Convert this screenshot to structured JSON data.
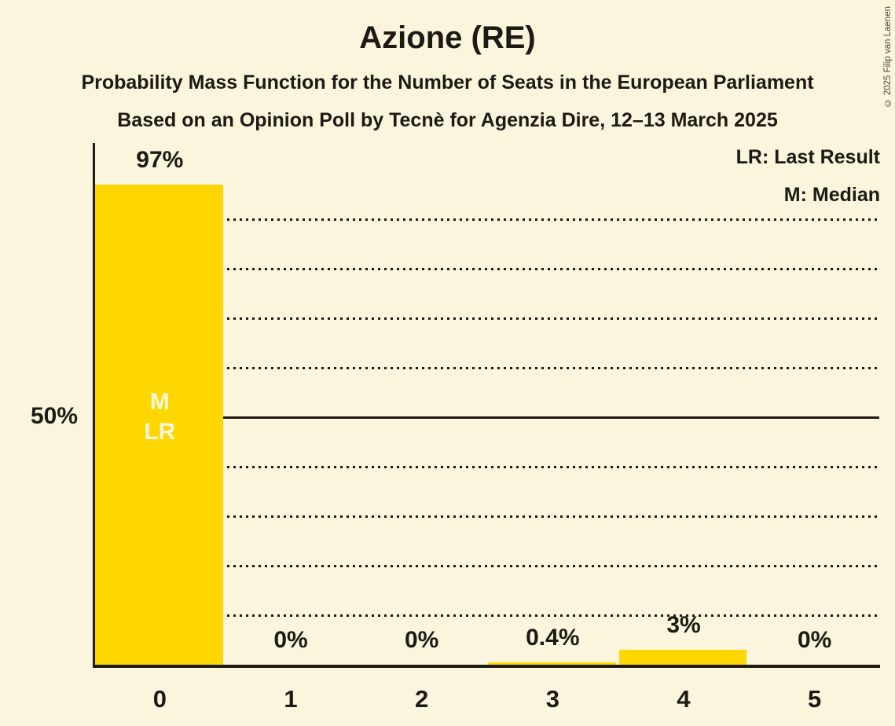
{
  "page": {
    "title": "Azione (RE)",
    "subtitle_line1": "Probability Mass Function for the Number of Seats in the European Parliament",
    "subtitle_line2": "Based on an Opinion Poll by Tecnè for Agenzia Dire, 12–13 March 2025",
    "copyright": "© 2025 Filip van Laenen"
  },
  "legend": {
    "last_result": "LR: Last Result",
    "median": "M: Median"
  },
  "colors": {
    "background": "#FAF5DC",
    "bar": "#FFD700",
    "text": "#1C1A12",
    "bar_annotation_text": "#FAF5DC",
    "copyright_text": "#4A4741"
  },
  "chart_data": {
    "type": "bar",
    "title": "Azione (RE)",
    "categories": [
      "0",
      "1",
      "2",
      "3",
      "4",
      "5"
    ],
    "values": [
      97,
      0,
      0,
      0.4,
      3,
      0
    ],
    "value_labels": [
      "97%",
      "0%",
      "0%",
      "0.4%",
      "3%",
      "0%"
    ],
    "ylim": [
      0,
      100
    ],
    "y_axis": {
      "tick_label": "50%",
      "tick_value": 50
    },
    "grid": {
      "step": 10,
      "style": "dotted",
      "solid_line_at": 50,
      "range": [
        10,
        90
      ]
    },
    "annotations": [
      {
        "category": "0",
        "lines": [
          "M",
          "LR"
        ],
        "anchor_value": 50
      }
    ],
    "legend_position": "top-right"
  }
}
